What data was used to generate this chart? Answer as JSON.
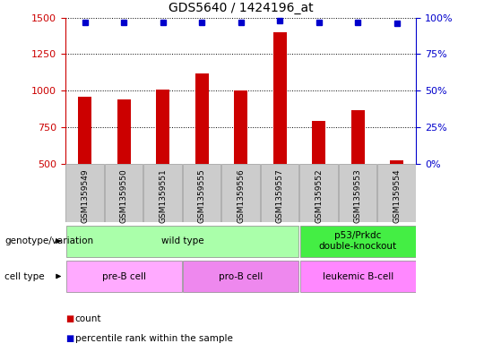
{
  "title": "GDS5640 / 1424196_at",
  "samples": [
    "GSM1359549",
    "GSM1359550",
    "GSM1359551",
    "GSM1359555",
    "GSM1359556",
    "GSM1359557",
    "GSM1359552",
    "GSM1359553",
    "GSM1359554"
  ],
  "counts": [
    960,
    940,
    1005,
    1120,
    1000,
    1400,
    790,
    865,
    520
  ],
  "percentile_ranks": [
    97,
    97,
    97,
    97,
    97,
    98,
    97,
    97,
    96
  ],
  "ylim_left": [
    500,
    1500
  ],
  "ylim_right": [
    0,
    100
  ],
  "yticks_left": [
    500,
    750,
    1000,
    1250,
    1500
  ],
  "yticks_right": [
    0,
    25,
    50,
    75,
    100
  ],
  "bar_color": "#cc0000",
  "dot_color": "#0000cc",
  "bar_bottom": 500,
  "genotype_groups": [
    {
      "label": "wild type",
      "start": 0,
      "end": 6,
      "color": "#aaffaa"
    },
    {
      "label": "p53/Prkdc\ndouble-knockout",
      "start": 6,
      "end": 9,
      "color": "#44ee44"
    }
  ],
  "cell_type_groups": [
    {
      "label": "pre-B cell",
      "start": 0,
      "end": 3,
      "color": "#ffaaff"
    },
    {
      "label": "pro-B cell",
      "start": 3,
      "end": 6,
      "color": "#ee88ee"
    },
    {
      "label": "leukemic B-cell",
      "start": 6,
      "end": 9,
      "color": "#ff88ff"
    }
  ],
  "legend_count_color": "#cc0000",
  "legend_percentile_color": "#0000cc",
  "left_axis_color": "#cc0000",
  "right_axis_color": "#0000cc",
  "sample_box_color": "#cccccc",
  "sample_box_edge": "#999999"
}
